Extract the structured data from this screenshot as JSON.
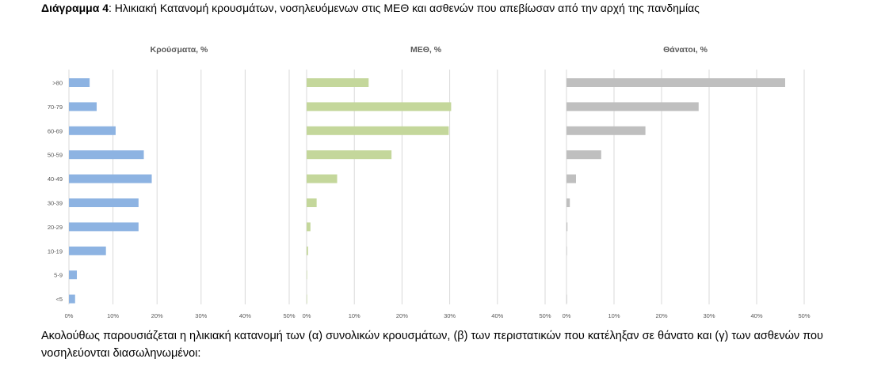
{
  "caption": {
    "label": "Διάγραμμα 4",
    "text": ": Ηλικιακή Κατανομή κρουσμάτων, νοσηλευόμενων στις ΜΕΘ και ασθενών που απεβίωσαν από την αρχή της πανδημίας"
  },
  "chart_data": [
    {
      "type": "bar",
      "orientation": "horizontal",
      "title": "Κρούσματα, %",
      "categories": [
        ">80",
        "70-79",
        "60-69",
        "50-59",
        "40-49",
        "30-39",
        "20-29",
        "10-19",
        "5-9",
        "<5"
      ],
      "values": [
        4.7,
        6.3,
        10.6,
        17.0,
        18.8,
        15.8,
        15.8,
        8.4,
        1.8,
        1.4
      ],
      "xlim": [
        0,
        50
      ],
      "xticks": [
        "0%",
        "10%",
        "20%",
        "30%",
        "40%",
        "50%"
      ],
      "color": "#8db3e2",
      "grid": true
    },
    {
      "type": "bar",
      "orientation": "horizontal",
      "title": "ΜΕΘ, %",
      "categories": [
        ">80",
        "70-79",
        "60-69",
        "50-59",
        "40-49",
        "30-39",
        "20-29",
        "10-19",
        "5-9",
        "<5"
      ],
      "values": [
        13.0,
        30.3,
        29.8,
        17.8,
        6.4,
        2.1,
        0.8,
        0.3,
        0.1,
        0.1
      ],
      "xlim": [
        0,
        50
      ],
      "xticks": [
        "0%",
        "10%",
        "20%",
        "30%",
        "40%",
        "50%"
      ],
      "color": "#c4d79b",
      "grid": true
    },
    {
      "type": "bar",
      "orientation": "horizontal",
      "title": "Θάνατοι, %",
      "categories": [
        ">80",
        "70-79",
        "60-69",
        "50-59",
        "40-49",
        "30-39",
        "20-29",
        "10-19",
        "5-9",
        "<5"
      ],
      "values": [
        46.0,
        27.8,
        16.6,
        7.3,
        2.0,
        0.7,
        0.2,
        0.1,
        0.0,
        0.1
      ],
      "xlim": [
        0,
        50
      ],
      "xticks": [
        "0%",
        "10%",
        "20%",
        "30%",
        "40%",
        "50%"
      ],
      "color": "#bfbfbf",
      "grid": true
    }
  ],
  "paragraph": "Ακολούθως παρουσιάζεται η ηλικιακή κατανομή των (α) συνολικών κρουσμάτων, (β) των περιστατικών που κατέληξαν σε θάνατο και (γ) των ασθενών που νοσηλεύονται διασωληνωμένοι:"
}
